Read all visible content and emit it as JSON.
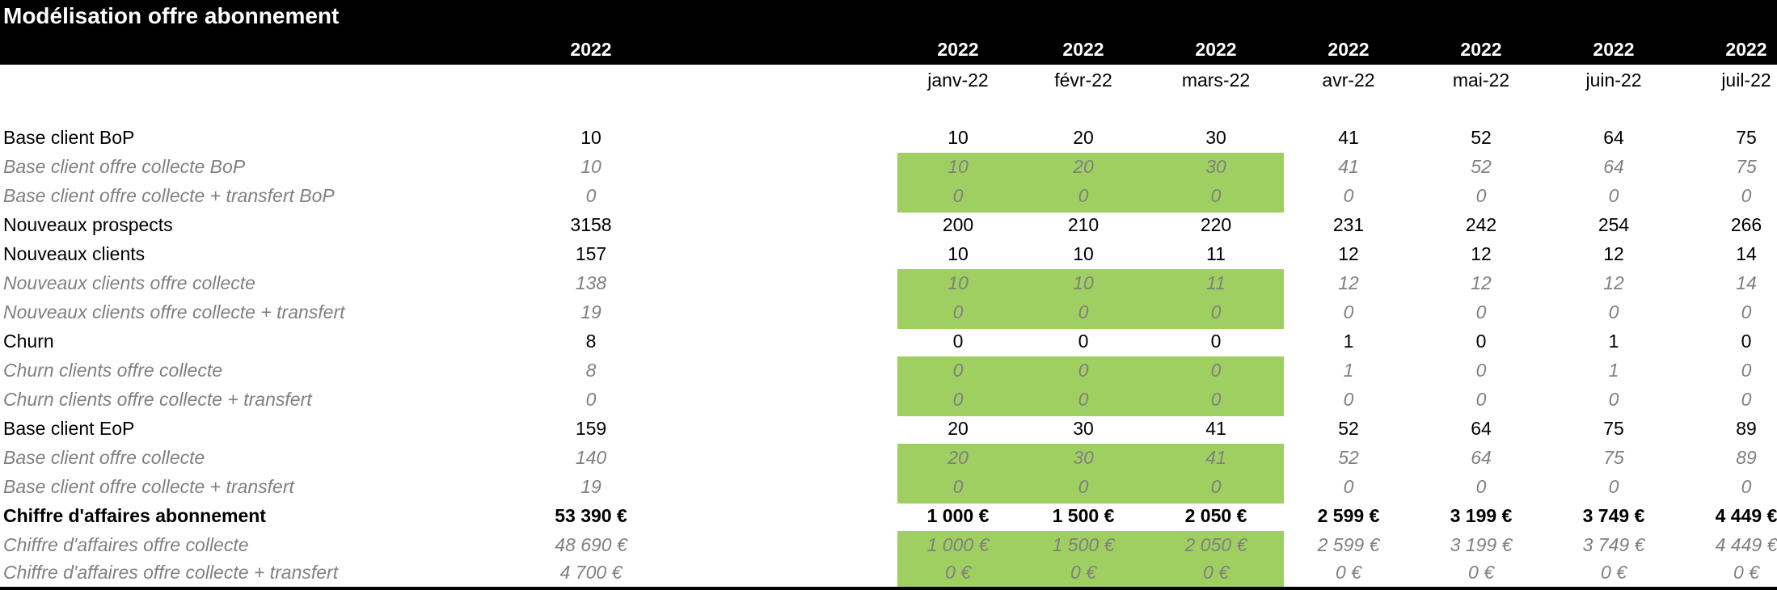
{
  "title": "Modélisation offre abonnement",
  "columns": [
    {
      "year": "2022",
      "month": ""
    },
    {
      "year": "2022",
      "month": "janv-22"
    },
    {
      "year": "2022",
      "month": "févr-22"
    },
    {
      "year": "2022",
      "month": "mars-22"
    },
    {
      "year": "2022",
      "month": "avr-22"
    },
    {
      "year": "2022",
      "month": "mai-22"
    },
    {
      "year": "2022",
      "month": "juin-22"
    },
    {
      "year": "2022",
      "month": "juil-22"
    }
  ],
  "rows": [
    {
      "label": "Base client BoP",
      "style": "main",
      "values": [
        "10",
        "10",
        "20",
        "30",
        "41",
        "52",
        "64",
        "75"
      ]
    },
    {
      "label": "Base client offre collecte BoP",
      "style": "sub",
      "values": [
        "10",
        "10",
        "20",
        "30",
        "41",
        "52",
        "64",
        "75"
      ]
    },
    {
      "label": "Base client offre collecte + transfert BoP",
      "style": "sub",
      "values": [
        "0",
        "0",
        "0",
        "0",
        "0",
        "0",
        "0",
        "0"
      ]
    },
    {
      "label": "Nouveaux prospects",
      "style": "main",
      "values": [
        "3158",
        "200",
        "210",
        "220",
        "231",
        "242",
        "254",
        "266"
      ]
    },
    {
      "label": "Nouveaux clients",
      "style": "main",
      "values": [
        "157",
        "10",
        "10",
        "11",
        "12",
        "12",
        "12",
        "14"
      ]
    },
    {
      "label": "Nouveaux clients offre collecte",
      "style": "sub",
      "values": [
        "138",
        "10",
        "10",
        "11",
        "12",
        "12",
        "12",
        "14"
      ]
    },
    {
      "label": "Nouveaux clients offre collecte + transfert",
      "style": "sub",
      "values": [
        "19",
        "0",
        "0",
        "0",
        "0",
        "0",
        "0",
        "0"
      ]
    },
    {
      "label": "Churn",
      "style": "main",
      "values": [
        "8",
        "0",
        "0",
        "0",
        "1",
        "0",
        "1",
        "0"
      ]
    },
    {
      "label": "Churn clients offre collecte",
      "style": "sub",
      "values": [
        "8",
        "0",
        "0",
        "0",
        "1",
        "0",
        "1",
        "0"
      ]
    },
    {
      "label": "Churn clients offre collecte + transfert",
      "style": "sub",
      "values": [
        "0",
        "0",
        "0",
        "0",
        "0",
        "0",
        "0",
        "0"
      ]
    },
    {
      "label": "Base client EoP",
      "style": "main",
      "values": [
        "159",
        "20",
        "30",
        "41",
        "52",
        "64",
        "75",
        "89"
      ]
    },
    {
      "label": "Base client offre collecte",
      "style": "sub",
      "values": [
        "140",
        "20",
        "30",
        "41",
        "52",
        "64",
        "75",
        "89"
      ]
    },
    {
      "label": "Base client offre collecte + transfert",
      "style": "sub",
      "values": [
        "19",
        "0",
        "0",
        "0",
        "0",
        "0",
        "0",
        "0"
      ]
    },
    {
      "label": "Chiffre d'affaires abonnement",
      "style": "bold",
      "values": [
        "53 390 €",
        "1 000 €",
        "1 500 €",
        "2 050 €",
        "2 599 €",
        "3 199 €",
        "3 749 €",
        "4 449 €"
      ]
    },
    {
      "label": "Chiffre d'affaires offre collecte",
      "style": "sub",
      "values": [
        "48 690 €",
        "1 000 €",
        "1 500 €",
        "2 050 €",
        "2 599 €",
        "3 199 €",
        "3 749 €",
        "4 449 €"
      ]
    },
    {
      "label": "Chiffre d'affaires offre collecte + transfert",
      "style": "sub",
      "values": [
        "4 700 €",
        "0 €",
        "0 €",
        "0 €",
        "0 €",
        "0 €",
        "0 €",
        "0 €"
      ]
    }
  ],
  "highlight_color": "#9fcf60"
}
